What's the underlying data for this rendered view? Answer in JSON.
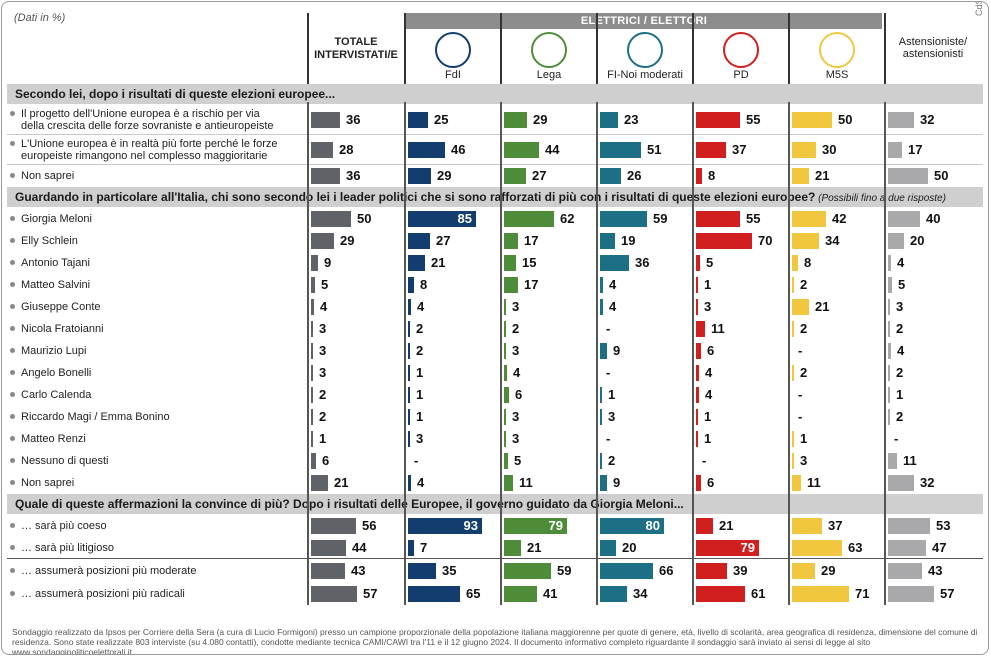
{
  "note": "(Dati in %)",
  "corner": "CdS",
  "group_header": "ELETTRICI / ELETTORI",
  "columns": [
    {
      "label": "TOTALE\nINTERVISTATI/E",
      "color": "#5f6266"
    },
    {
      "label": "FdI",
      "logo": "FRATELLI D'ITALIA MELONI",
      "color": "#123d6e"
    },
    {
      "label": "Lega",
      "logo": "LEGA SALVINI",
      "color": "#4e8c3a"
    },
    {
      "label": "FI-Noi moderati",
      "logo": "FORZA ITALIA BERLUSCONI",
      "color": "#1d6f86"
    },
    {
      "label": "PD",
      "logo": "PD",
      "color": "#d11f1f"
    },
    {
      "label": "M5S",
      "logo": "MOVIMENTO 5 STELLE 2050",
      "color": "#f0c73f"
    },
    {
      "label": "Astensioniste/\nastensionisti",
      "color": "#a9a9ab"
    }
  ],
  "chart_data": {
    "type": "bar",
    "sections": [
      {
        "title": "Secondo lei, dopo i risultati di queste elezioni europee...",
        "subtitle": "",
        "rows": [
          {
            "label": "Il progetto dell'Unione europea è a rischio per via\ndella crescita delle forze sovraniste e antieuropeiste",
            "values": [
              36,
              25,
              29,
              23,
              55,
              50,
              32
            ]
          },
          {
            "label": "L'Unione europea è in realtà più forte perché le forze\neuropeiste rimangono nel complesso maggioritarie",
            "values": [
              28,
              46,
              44,
              51,
              37,
              30,
              17
            ]
          },
          {
            "label": "Non saprei",
            "values": [
              36,
              29,
              27,
              26,
              8,
              21,
              50
            ]
          }
        ]
      },
      {
        "title": "Guardando in particolare all'Italia, chi sono secondo lei i leader politici che si sono rafforzati di più con i risultati di queste elezioni europee?",
        "subtitle": "(Possibili fino a due risposte)",
        "rows": [
          {
            "label": "Giorgia Meloni",
            "values": [
              50,
              85,
              62,
              59,
              55,
              42,
              40
            ]
          },
          {
            "label": "Elly Schlein",
            "values": [
              29,
              27,
              17,
              19,
              70,
              34,
              20
            ]
          },
          {
            "label": "Antonio Tajani",
            "values": [
              9,
              21,
              15,
              36,
              5,
              8,
              4
            ]
          },
          {
            "label": "Matteo Salvini",
            "values": [
              5,
              8,
              17,
              4,
              1,
              2,
              5
            ]
          },
          {
            "label": "Giuseppe Conte",
            "values": [
              4,
              4,
              3,
              4,
              3,
              21,
              3
            ]
          },
          {
            "label": "Nicola Fratoianni",
            "values": [
              3,
              2,
              2,
              "-",
              11,
              2,
              2
            ]
          },
          {
            "label": "Maurizio Lupi",
            "values": [
              3,
              2,
              3,
              9,
              6,
              "-",
              4
            ]
          },
          {
            "label": "Angelo Bonelli",
            "values": [
              3,
              1,
              4,
              "-",
              4,
              2,
              2
            ]
          },
          {
            "label": "Carlo Calenda",
            "values": [
              2,
              1,
              6,
              1,
              4,
              "-",
              1
            ]
          },
          {
            "label": "Riccardo Magi / Emma Bonino",
            "values": [
              2,
              1,
              3,
              3,
              1,
              "-",
              2
            ]
          },
          {
            "label": "Matteo Renzi",
            "values": [
              1,
              3,
              3,
              "-",
              1,
              1,
              "-"
            ]
          },
          {
            "label": "Nessuno di questi",
            "values": [
              6,
              "-",
              5,
              2,
              "-",
              3,
              11
            ]
          },
          {
            "label": "Non saprei",
            "values": [
              21,
              4,
              11,
              9,
              6,
              11,
              32
            ]
          }
        ]
      },
      {
        "title": "Quale di queste affermazioni la convince di più? Dopo i risultati delle Europee, il governo guidato da Giorgia Meloni...",
        "subtitle": "",
        "rows": [
          {
            "label": "… sarà più coeso",
            "values": [
              56,
              93,
              79,
              80,
              21,
              37,
              53
            ]
          },
          {
            "label": "… sarà più litigioso",
            "values": [
              44,
              7,
              21,
              20,
              79,
              63,
              47
            ]
          },
          {
            "label": "… assumerà posizioni più moderate",
            "values": [
              43,
              35,
              59,
              66,
              39,
              29,
              43
            ]
          },
          {
            "label": "… assumerà posizioni più radicali",
            "values": [
              57,
              65,
              41,
              34,
              61,
              71,
              57
            ]
          }
        ]
      }
    ]
  },
  "footer": "Sondaggio realizzato da Ipsos per Corriere della Sera (a cura di Lucio Formigoni) presso un campione proporzionale della popolazione italiana maggiorenne per quote di genere, età, livello di scolarità, area geografica di residenza, dimensione del comune di residenza. Sono state realizzate 803 interviste (su 4.080 contatti), condotte mediante tecnica CAMI/CAWI tra l'11 e il 12 giugno 2024. Il documento informativo completo riguardante il sondaggio sarà inviato ai sensi di legge al sito www.sondaggipoliticoelettorali.it"
}
